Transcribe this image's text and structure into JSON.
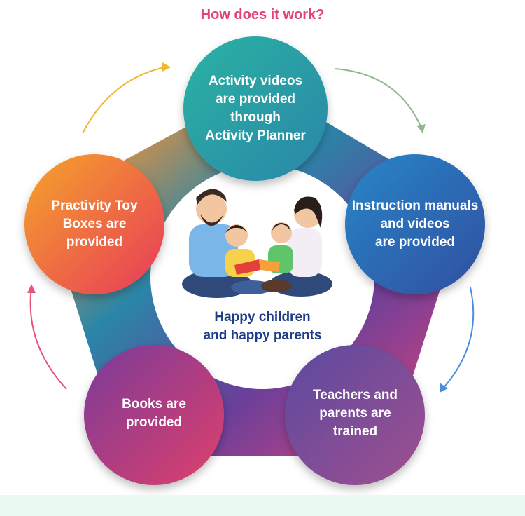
{
  "title": "How does it work?",
  "center": {
    "caption": "Happy children\nand happy parents",
    "illustration": "family-reading-illustration"
  },
  "steps": [
    {
      "label": "Activity videos\nare provided\nthrough\nActivity Planner",
      "color": "#2a9d9c"
    },
    {
      "label": "Instruction manuals\nand videos\nare provided",
      "color": "#2c6fb5"
    },
    {
      "label": "Teachers and\nparents are\ntrained",
      "color": "#8a4a9a"
    },
    {
      "label": "Books are\nprovided",
      "color": "#b8407a"
    },
    {
      "label": "Practivity Toy\nBoxes are\nprovided",
      "color": "#ef6a3a"
    }
  ],
  "arrow_colors": [
    "#f2b632",
    "#8fb98a",
    "#4a8fd8",
    "#e8557a"
  ]
}
